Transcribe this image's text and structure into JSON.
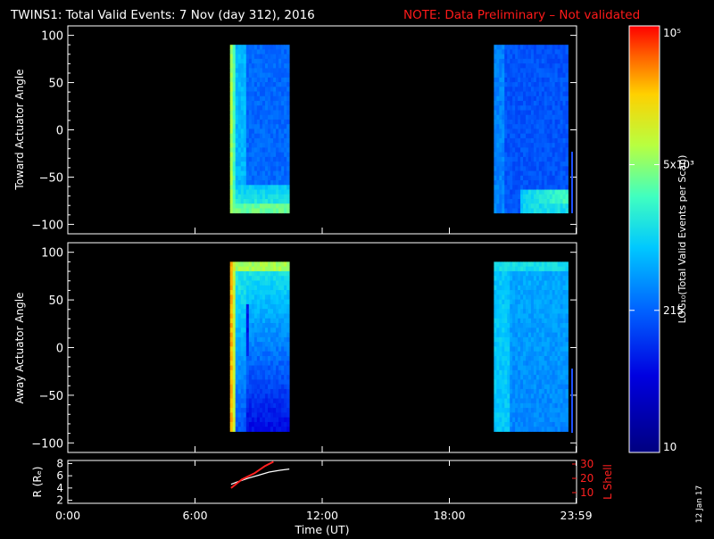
{
  "header": {
    "title": "TWINS1: Total Valid Events:  7 Nov (day 312), 2016",
    "note": "NOTE: Data Preliminary – Not validated"
  },
  "colors": {
    "background": "#000000",
    "foreground": "#ffffff",
    "note": "#ff1a1a",
    "l_shell": "#ff2020"
  },
  "chart_data": [
    {
      "type": "heatmap",
      "ylabel": "Toward Actuator Angle",
      "x_unit": "hours UT",
      "xlim": [
        0,
        24
      ],
      "ylim": [
        -110,
        110
      ],
      "y_ticks": [
        100,
        50,
        0,
        -50,
        -100
      ],
      "tick_labels": [
        "100",
        "50",
        "0",
        "−50",
        "−100"
      ],
      "y_range_data": [
        -88,
        90
      ],
      "intervals": [
        {
          "start": 7.65,
          "end": 10.45
        },
        {
          "start": 20.1,
          "end": 23.6
        }
      ]
    },
    {
      "type": "heatmap",
      "ylabel": "Away Actuator Angle",
      "x_unit": "hours UT",
      "xlim": [
        0,
        24
      ],
      "ylim": [
        -110,
        110
      ],
      "y_ticks": [
        100,
        50,
        0,
        -50,
        -100
      ],
      "tick_labels": [
        "100",
        "50",
        "0",
        "−50",
        "−100"
      ],
      "y_range_data": [
        -88,
        90
      ],
      "intervals": [
        {
          "start": 7.65,
          "end": 10.45
        },
        {
          "start": 20.1,
          "end": 23.6
        }
      ]
    },
    {
      "type": "line",
      "xlabel": "Time (UT)",
      "ylabel": "R (Rₑ)",
      "y2label": "L Shell",
      "x_tick_values": [
        0,
        6,
        12,
        18,
        23.98
      ],
      "x_tick_labels": [
        "0:00",
        "6:00",
        "12:00",
        "18:00",
        "23:59"
      ],
      "xlim": [
        0,
        24
      ],
      "ylim": [
        1.5,
        8.5
      ],
      "y_ticks": [
        2,
        4,
        6,
        8
      ],
      "y_tick_labels": [
        "2",
        "4",
        "6",
        "8"
      ],
      "y2lim": [
        0,
        30
      ],
      "y2_ticks": [
        10,
        20,
        30
      ],
      "y2_tick_labels": [
        "10",
        "20",
        "30"
      ],
      "series": [
        {
          "name": "R",
          "color": "#ffffff",
          "x": [
            7.7,
            8.0,
            8.5,
            9.0,
            9.5,
            10.0,
            10.45
          ],
          "y": [
            4.6,
            5.0,
            5.6,
            6.1,
            6.6,
            6.9,
            7.1
          ]
        },
        {
          "name": "L Shell",
          "color": "#ff2020",
          "x": [
            7.7,
            8.2,
            8.8,
            9.3,
            9.7
          ],
          "y": [
            4.0,
            5.4,
            6.4,
            7.6,
            8.3
          ]
        }
      ]
    },
    {
      "type": "colorbar",
      "label": "LOG₁₀(Total Valid Events per Scan)",
      "scale": "log",
      "range": [
        10,
        100000
      ],
      "ticks": [
        {
          "value": 100000,
          "label": "10⁵"
        },
        {
          "value": 5000,
          "label": "5x10³"
        },
        {
          "value": 215,
          "label": "215"
        },
        {
          "value": 10,
          "label": "10"
        }
      ]
    }
  ],
  "footer": {
    "date_stamp": "12 Jan 17"
  }
}
